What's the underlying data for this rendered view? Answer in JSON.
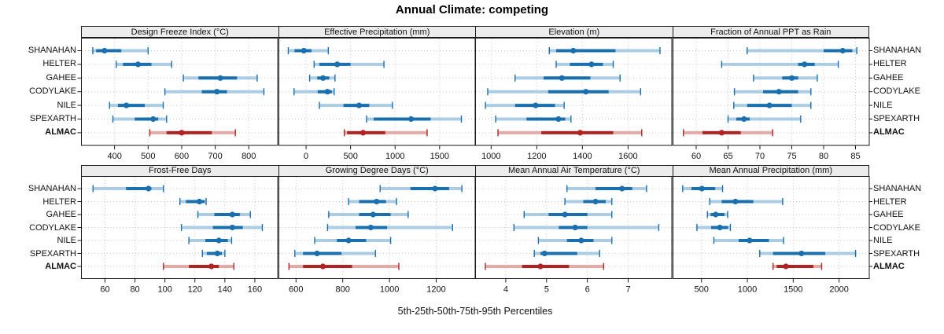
{
  "title": "Annual Climate: competing",
  "caption": "5th-25th-50th-75th-95th Percentiles",
  "sites": [
    "SHANAHAN",
    "HELTER",
    "GAHEE",
    "CODYLAKE",
    "NILE",
    "SPEXARTH",
    "ALMAC"
  ],
  "highlight_site": "ALMAC",
  "colors": {
    "blue_dark": "#1a6fae",
    "blue_light": "#aacde4",
    "red_dark": "#b22222",
    "red_light": "#e5aaa6",
    "grid": "#c6c6c6",
    "panel_border": "#1a1a1a",
    "strip_bg": "#ececec"
  },
  "percentile_labels": [
    "p5",
    "p25",
    "p50",
    "p75",
    "p95"
  ],
  "chart_data": [
    {
      "type": "dot-whisker",
      "title": "Design Freeze Index (°C)",
      "xlim": [
        300,
        885
      ],
      "ticks": [
        400,
        500,
        600,
        700,
        800
      ],
      "values": {
        "SHANAHAN": [
          335,
          345,
          370,
          420,
          500
        ],
        "HELTER": [
          405,
          425,
          470,
          510,
          570
        ],
        "GAHEE": [
          605,
          650,
          715,
          765,
          825
        ],
        "CODYLAKE": [
          550,
          660,
          705,
          735,
          845
        ],
        "NILE": [
          385,
          410,
          435,
          490,
          545
        ],
        "SPEXARTH": [
          395,
          460,
          515,
          530,
          555
        ],
        "ALMAC": [
          505,
          555,
          600,
          690,
          760
        ]
      }
    },
    {
      "type": "dot-whisker",
      "title": "Effective Precipitation (mm)",
      "xlim": [
        -310,
        1895
      ],
      "ticks": [
        0,
        500,
        1000,
        1500
      ],
      "values": {
        "SHANAHAN": [
          -200,
          -130,
          -25,
          60,
          250
        ],
        "HELTER": [
          90,
          150,
          350,
          500,
          875
        ],
        "GAHEE": [
          40,
          125,
          190,
          260,
          325
        ],
        "CODYLAKE": [
          -135,
          130,
          240,
          290,
          315
        ],
        "NILE": [
          150,
          420,
          595,
          710,
          970
        ],
        "SPEXARTH": [
          680,
          760,
          1180,
          1400,
          1745
        ],
        "ALMAC": [
          430,
          460,
          640,
          890,
          1360
        ]
      }
    },
    {
      "type": "dot-whisker",
      "title": "Elevation (m)",
      "xlim": [
        930,
        1790
      ],
      "ticks": [
        1000,
        1200,
        1400,
        1600
      ],
      "values": {
        "SHANAHAN": [
          1255,
          1285,
          1360,
          1545,
          1740
        ],
        "HELTER": [
          1285,
          1345,
          1440,
          1490,
          1535
        ],
        "GAHEE": [
          1105,
          1230,
          1310,
          1435,
          1565
        ],
        "CODYLAKE": [
          985,
          1250,
          1415,
          1515,
          1655
        ],
        "NILE": [
          975,
          1105,
          1195,
          1280,
          1320
        ],
        "SPEXARTH": [
          1020,
          1155,
          1295,
          1325,
          1350
        ],
        "ALMAC": [
          1030,
          1220,
          1390,
          1535,
          1660
        ]
      }
    },
    {
      "type": "dot-whisker",
      "title": "Fraction of Annual PPT as Rain",
      "xlim": [
        56.3,
        87.1
      ],
      "ticks": [
        60,
        65,
        70,
        75,
        80,
        85
      ],
      "values": {
        "SHANAHAN": [
          68,
          80,
          83,
          84.5,
          85.2
        ],
        "HELTER": [
          64,
          76,
          77,
          78.6,
          82.3
        ],
        "GAHEE": [
          69,
          73.5,
          75,
          76,
          79
        ],
        "CODYLAKE": [
          66,
          70.5,
          73,
          76,
          78
        ],
        "NILE": [
          65.9,
          68,
          71.5,
          75,
          78
        ],
        "SPEXARTH": [
          65,
          66.3,
          67.5,
          68.4,
          76.4
        ],
        "ALMAC": [
          58,
          61,
          64,
          67,
          72
        ]
      }
    },
    {
      "type": "dot-whisker",
      "title": "Frost-Free Days",
      "xlim": [
        44,
        175
      ],
      "ticks": [
        60,
        80,
        100,
        120,
        140,
        160
      ],
      "values": {
        "SHANAHAN": [
          52,
          74,
          89,
          91,
          99
        ],
        "HELTER": [
          110,
          114,
          123,
          126.5,
          127.5
        ],
        "GAHEE": [
          122,
          133,
          145,
          150,
          157
        ],
        "CODYLAKE": [
          111,
          132,
          145,
          152,
          165
        ],
        "NILE": [
          116,
          127,
          136,
          142,
          144.5
        ],
        "SPEXARTH": [
          125,
          128,
          135,
          138,
          140
        ],
        "ALMAC": [
          99,
          116,
          131,
          136,
          146
        ]
      }
    },
    {
      "type": "dot-whisker",
      "title": "Growing Degree Days (°C)",
      "xlim": [
        525,
        1365
      ],
      "ticks": [
        600,
        800,
        1000,
        1200
      ],
      "values": {
        "SHANAHAN": [
          960,
          1090,
          1195,
          1255,
          1310
        ],
        "HELTER": [
          825,
          870,
          945,
          985,
          1030
        ],
        "GAHEE": [
          740,
          870,
          930,
          1005,
          1080
        ],
        "CODYLAKE": [
          735,
          855,
          920,
          990,
          1270
        ],
        "NILE": [
          680,
          775,
          825,
          900,
          1005
        ],
        "SPEXARTH": [
          595,
          630,
          690,
          795,
          940
        ],
        "ALMAC": [
          570,
          630,
          715,
          840,
          1040
        ]
      }
    },
    {
      "type": "dot-whisker",
      "title": "Mean Annual Air Temperature (°C)",
      "xlim": [
        3.25,
        8.06
      ],
      "ticks": [
        4,
        5,
        6,
        7
      ],
      "values": {
        "SHANAHAN": [
          5.5,
          6.2,
          6.85,
          7.1,
          7.45
        ],
        "HELTER": [
          5.45,
          5.9,
          6.2,
          6.45,
          6.6
        ],
        "GAHEE": [
          4.45,
          5.05,
          5.45,
          6.0,
          6.6
        ],
        "CODYLAKE": [
          4.2,
          5.3,
          5.7,
          6.0,
          7.75
        ],
        "NILE": [
          4.8,
          5.5,
          5.85,
          6.15,
          6.6
        ],
        "SPEXARTH": [
          4.7,
          4.85,
          4.95,
          5.75,
          6.3
        ],
        "ALMAC": [
          3.5,
          4.4,
          4.85,
          5.55,
          6.4
        ]
      }
    },
    {
      "type": "dot-whisker",
      "title": "Mean Annual Precipitation (mm)",
      "xlim": [
        185,
        2325
      ],
      "ticks": [
        500,
        1000,
        1500,
        2000
      ],
      "values": {
        "SHANAHAN": [
          295,
          390,
          505,
          650,
          730
        ],
        "HELTER": [
          590,
          720,
          870,
          1065,
          1385
        ],
        "GAHEE": [
          565,
          600,
          655,
          750,
          785
        ],
        "CODYLAKE": [
          450,
          605,
          700,
          790,
          815
        ],
        "NILE": [
          635,
          905,
          1025,
          1235,
          1395
        ],
        "SPEXARTH": [
          1135,
          1280,
          1590,
          1850,
          2180
        ],
        "ALMAC": [
          1280,
          1320,
          1420,
          1720,
          1810
        ]
      }
    }
  ]
}
